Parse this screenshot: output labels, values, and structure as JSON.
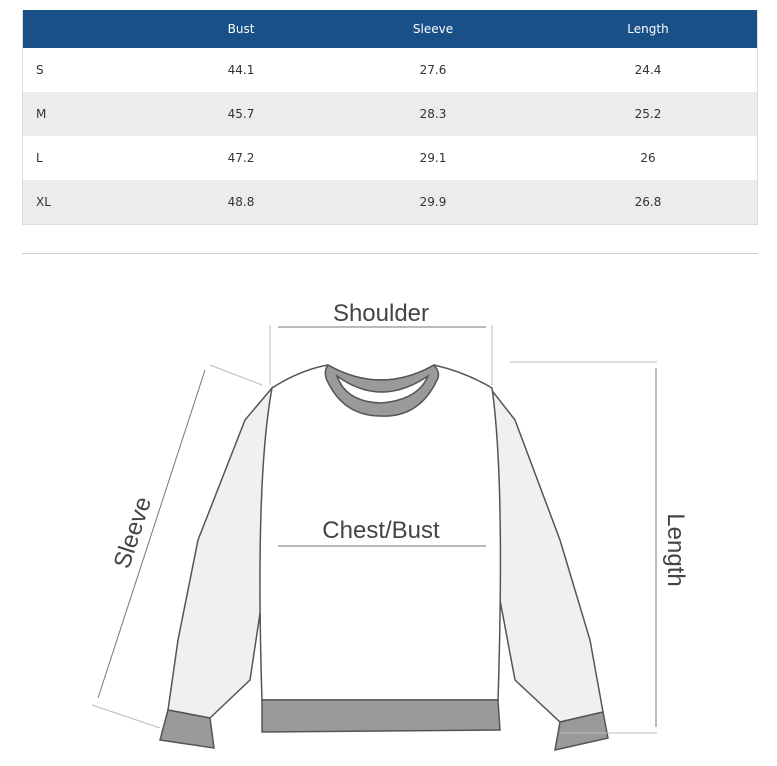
{
  "table": {
    "headers": [
      "",
      "Bust",
      "Sleeve",
      "Length"
    ],
    "rows": [
      [
        "S",
        "44.1",
        "27.6",
        "24.4"
      ],
      [
        "M",
        "45.7",
        "28.3",
        "25.2"
      ],
      [
        "L",
        "47.2",
        "29.1",
        "26"
      ],
      [
        "XL",
        "48.8",
        "29.9",
        "26.8"
      ]
    ],
    "header_color": "#1a5088"
  },
  "diagram": {
    "labels": {
      "shoulder": "Shoulder",
      "chest": "Chest/Bust",
      "sleeve": "Sleeve",
      "length": "Length"
    }
  }
}
